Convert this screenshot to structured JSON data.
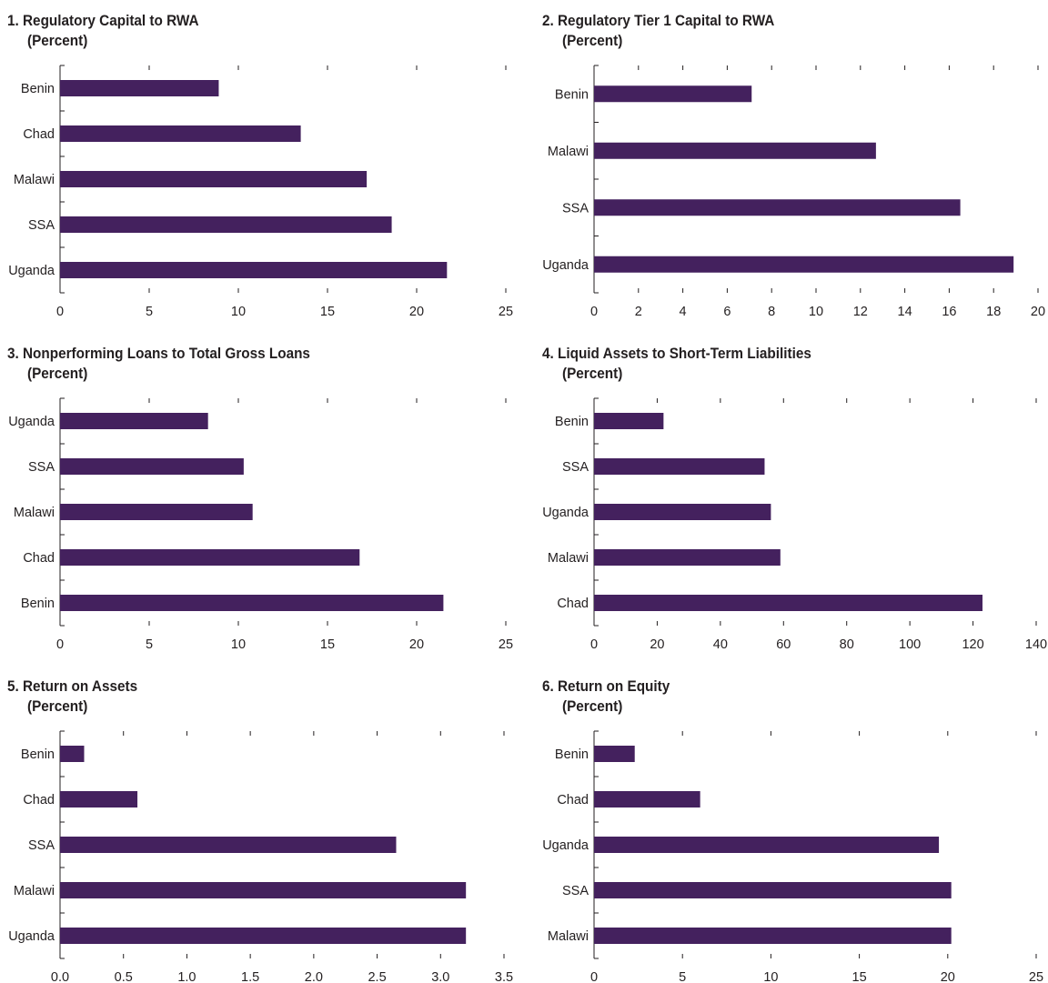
{
  "chart_data": [
    {
      "type": "bar",
      "title": "1. Regulatory Capital to RWA",
      "subtitle": "(Percent)",
      "categories": [
        "Benin",
        "Chad",
        "Malawi",
        "SSA",
        "Uganda"
      ],
      "values": [
        8.9,
        13.5,
        17.2,
        18.6,
        21.7
      ],
      "xlim": [
        0,
        25
      ],
      "ticks": [
        0,
        5,
        10,
        15,
        20,
        25
      ],
      "tick_labels": [
        "0",
        "5",
        "10",
        "15",
        "20",
        "25"
      ],
      "orientation": "horizontal",
      "bar_color": "#44215e"
    },
    {
      "type": "bar",
      "title": "2. Regulatory Tier 1 Capital to RWA",
      "subtitle": "(Percent)",
      "categories": [
        "Benin",
        "Malawi",
        "SSA",
        "Uganda"
      ],
      "values": [
        7.1,
        12.7,
        16.5,
        18.9
      ],
      "xlim": [
        0,
        20
      ],
      "ticks": [
        0,
        2,
        4,
        6,
        8,
        10,
        12,
        14,
        16,
        18,
        20
      ],
      "tick_labels": [
        "0",
        "2",
        "4",
        "6",
        "8",
        "10",
        "12",
        "14",
        "16",
        "18",
        "20"
      ],
      "orientation": "horizontal",
      "bar_color": "#44215e"
    },
    {
      "type": "bar",
      "title": "3. Nonperforming Loans to Total Gross Loans",
      "subtitle": "(Percent)",
      "categories": [
        "Uganda",
        "SSA",
        "Malawi",
        "Chad",
        "Benin"
      ],
      "values": [
        8.3,
        10.3,
        10.8,
        16.8,
        21.5
      ],
      "xlim": [
        0,
        25
      ],
      "ticks": [
        0,
        5,
        10,
        15,
        20,
        25
      ],
      "tick_labels": [
        "0",
        "5",
        "10",
        "15",
        "20",
        "25"
      ],
      "orientation": "horizontal",
      "bar_color": "#44215e"
    },
    {
      "type": "bar",
      "title": "4. Liquid Assets to Short-Term Liabilities",
      "subtitle": "(Percent)",
      "categories": [
        "Benin",
        "SSA",
        "Uganda",
        "Malawi",
        "Chad"
      ],
      "values": [
        22,
        54,
        56,
        59,
        123
      ],
      "xlim": [
        0,
        140
      ],
      "ticks": [
        0,
        20,
        40,
        60,
        80,
        100,
        120,
        140
      ],
      "tick_labels": [
        "0",
        "20",
        "40",
        "60",
        "80",
        "100",
        "120",
        "140"
      ],
      "orientation": "horizontal",
      "bar_color": "#44215e"
    },
    {
      "type": "bar",
      "title": "5. Return on Assets",
      "subtitle": "(Percent)",
      "categories": [
        "Benin",
        "Chad",
        "SSA",
        "Malawi",
        "Uganda"
      ],
      "values": [
        0.19,
        0.61,
        2.65,
        3.2,
        3.2
      ],
      "xlim": [
        0,
        3.5
      ],
      "ticks": [
        0,
        0.5,
        1,
        1.5,
        2,
        2.5,
        3,
        3.5
      ],
      "tick_labels": [
        "0.0",
        "0.5",
        "1.0",
        "1.5",
        "2.0",
        "2.5",
        "3.0",
        "3.5"
      ],
      "orientation": "horizontal",
      "bar_color": "#44215e"
    },
    {
      "type": "bar",
      "title": "6. Return on Equity",
      "subtitle": "(Percent)",
      "categories": [
        "Benin",
        "Chad",
        "Uganda",
        "SSA",
        "Malawi"
      ],
      "values": [
        2.3,
        6.0,
        19.5,
        20.2,
        20.2
      ],
      "xlim": [
        0,
        25
      ],
      "ticks": [
        0,
        5,
        10,
        15,
        20,
        25
      ],
      "tick_labels": [
        "0",
        "5",
        "10",
        "15",
        "20",
        "25"
      ],
      "orientation": "horizontal",
      "bar_color": "#44215e"
    }
  ]
}
